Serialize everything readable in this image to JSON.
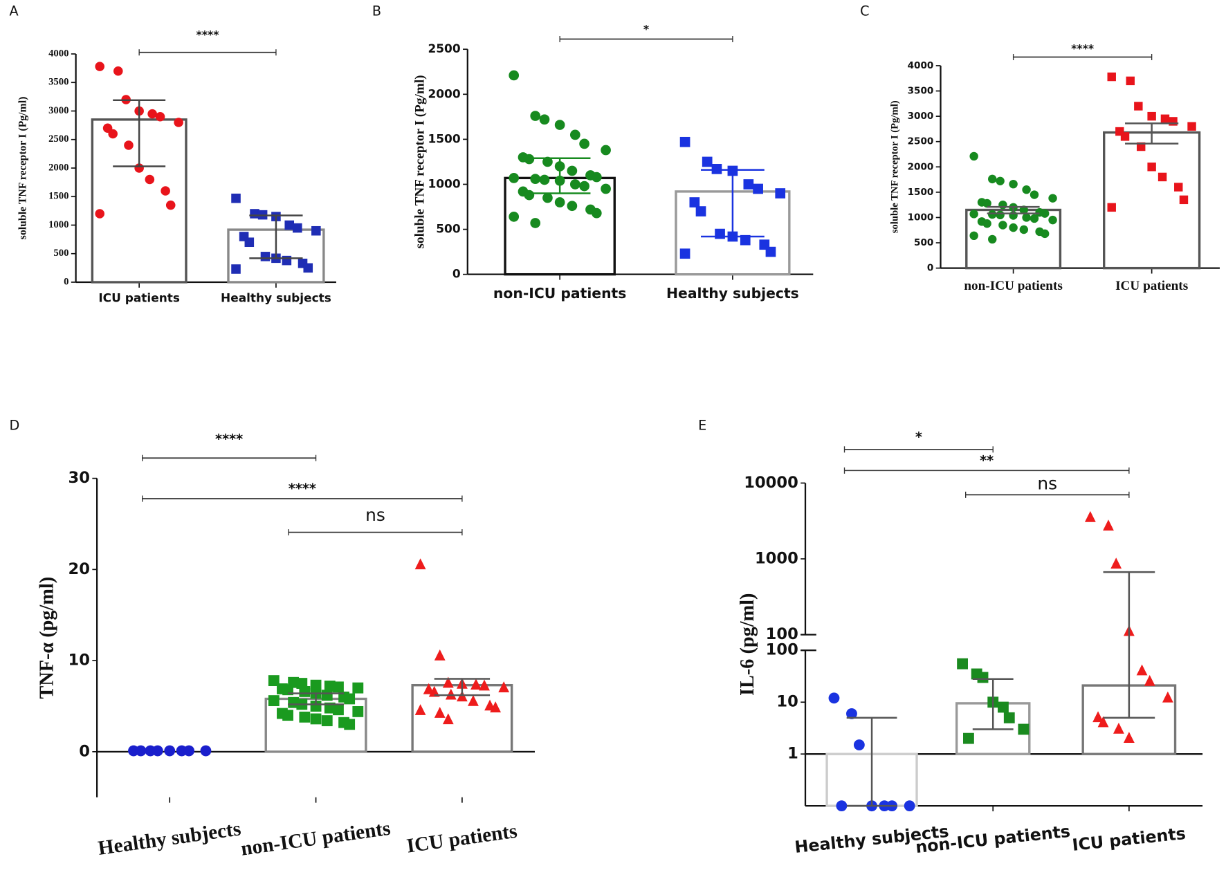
{
  "chart_data": [
    {
      "type": "dotbar",
      "panel": "A",
      "ylabel": "soluble TNF receptor I (Pg/ml)",
      "ylim": [
        0,
        4000
      ],
      "yticks": [
        0,
        500,
        1000,
        1500,
        2000,
        2500,
        3000,
        3500,
        4000
      ],
      "categories": [
        "ICU patients",
        "Healthy subjects"
      ],
      "groups": [
        {
          "color": "#e8141b",
          "marker": "circle",
          "bar_color": "#555555",
          "whisker_color": "#444444",
          "bar": 2850,
          "whisker_low": 2030,
          "whisker_high": 3190,
          "points": [
            3780,
            3700,
            3200,
            3000,
            2950,
            2900,
            2800,
            2700,
            2600,
            2400,
            2000,
            1800,
            1600,
            1350,
            1200
          ]
        },
        {
          "color": "#1f2db4",
          "marker": "square",
          "bar_color": "#888888",
          "whisker_color": "#444444",
          "bar": 920,
          "whisker_low": 420,
          "whisker_high": 1170,
          "points": [
            1470,
            1200,
            1180,
            1150,
            1000,
            950,
            900,
            800,
            700,
            450,
            420,
            380,
            330,
            250,
            230
          ]
        }
      ],
      "brackets": [
        {
          "from": 0,
          "to": 1,
          "label": "****"
        }
      ]
    },
    {
      "type": "dotbar",
      "panel": "B",
      "ylabel": "soluble TNF receptor I (Pg/ml)",
      "ylim": [
        0,
        2500
      ],
      "yticks": [
        0,
        500,
        1000,
        1500,
        2000,
        2500
      ],
      "categories": [
        "non-ICU patients",
        "Healthy subjects"
      ],
      "groups": [
        {
          "color": "#178a1f",
          "marker": "circle",
          "bar_color": "#111111",
          "whisker_color": "#178a1f",
          "bar": 1070,
          "whisker_low": 900,
          "whisker_high": 1290,
          "points": [
            2210,
            1760,
            1720,
            1660,
            1550,
            1450,
            1380,
            1300,
            1280,
            1250,
            1200,
            1150,
            1100,
            1080,
            1070,
            1060,
            1050,
            1040,
            1000,
            980,
            950,
            920,
            880,
            850,
            800,
            760,
            720,
            680,
            640,
            570
          ]
        },
        {
          "color": "#1a33e0",
          "marker": "square",
          "bar_color": "#999999",
          "whisker_color": "#1a33e0",
          "bar": 920,
          "whisker_low": 420,
          "whisker_high": 1160,
          "points": [
            1470,
            1250,
            1170,
            1150,
            1000,
            950,
            900,
            800,
            700,
            450,
            420,
            380,
            330,
            250,
            230
          ]
        }
      ],
      "brackets": [
        {
          "from": 0,
          "to": 1,
          "label": "*"
        }
      ]
    },
    {
      "type": "dotbar",
      "panel": "C",
      "ylabel": "soluble TNF receptor I (Pg/ml)",
      "ylim": [
        0,
        4000
      ],
      "yticks": [
        0,
        500,
        1000,
        1500,
        2000,
        2500,
        3000,
        3500,
        4000
      ],
      "categories": [
        "non-ICU patients",
        "ICU patients"
      ],
      "groups": [
        {
          "color": "#178a1f",
          "marker": "circle",
          "bar_color": "#555555",
          "whisker_color": "#555555",
          "bar": 1150,
          "whisker_low": 1080,
          "whisker_high": 1210,
          "points": [
            2210,
            1760,
            1720,
            1660,
            1550,
            1450,
            1380,
            1300,
            1280,
            1250,
            1200,
            1150,
            1100,
            1080,
            1070,
            1060,
            1050,
            1040,
            1000,
            980,
            950,
            920,
            880,
            850,
            800,
            760,
            720,
            680,
            640,
            570
          ]
        },
        {
          "color": "#e8141b",
          "marker": "square",
          "bar_color": "#555555",
          "whisker_color": "#555555",
          "bar": 2680,
          "whisker_low": 2460,
          "whisker_high": 2860,
          "points": [
            3780,
            3700,
            3200,
            3000,
            2950,
            2900,
            2800,
            2700,
            2600,
            2400,
            2000,
            1800,
            1600,
            1350,
            1200
          ]
        }
      ],
      "brackets": [
        {
          "from": 0,
          "to": 1,
          "label": "****"
        }
      ]
    },
    {
      "type": "dotbar",
      "panel": "D",
      "ylabel": "TNF-α  (pg/ml)",
      "ylim": [
        -5,
        30
      ],
      "yticks": [
        0,
        10,
        20,
        30
      ],
      "categories": [
        "Healthy subjects",
        "non-ICU patients",
        "ICU patients"
      ],
      "groups": [
        {
          "color": "#1a1fcc",
          "marker": "circle",
          "points": [
            0.1,
            0.1,
            0.1,
            0.1,
            0.1,
            0.1,
            0.1,
            0.1
          ]
        },
        {
          "color": "#1a9a1f",
          "marker": "square",
          "bar_color": "#888888",
          "whisker_color": "#555555",
          "bar": 5.8,
          "whisker_low": 5.2,
          "whisker_high": 6.4,
          "points": [
            7.8,
            7.6,
            7.5,
            7.3,
            7.2,
            7.1,
            7.0,
            6.9,
            6.8,
            6.6,
            6.4,
            6.2,
            6.0,
            5.8,
            5.6,
            5.4,
            5.2,
            5.0,
            4.8,
            4.6,
            4.4,
            4.2,
            4.0,
            3.8,
            3.6,
            3.4,
            3.2,
            3.0
          ]
        },
        {
          "color": "#ee1c1c",
          "marker": "triangle",
          "bar_color": "#777777",
          "whisker_color": "#555555",
          "bar": 7.3,
          "whisker_low": 6.2,
          "whisker_high": 8.0,
          "points": [
            20.5,
            10.5,
            7.5,
            7.4,
            7.3,
            7.2,
            7.0,
            6.8,
            6.5,
            6.2,
            6.0,
            5.5,
            5.0,
            4.8,
            4.5,
            4.2,
            3.5
          ]
        }
      ],
      "brackets": [
        {
          "from": 0,
          "to": 1,
          "label": "****"
        },
        {
          "from": 0,
          "to": 2,
          "label": "****"
        },
        {
          "from": 1,
          "to": 2,
          "label": "ns"
        }
      ]
    },
    {
      "type": "dotbar",
      "panel": "E",
      "ylabel": "IL-6  (pg/ml)",
      "log": true,
      "ybreak": 100,
      "ylim": [
        0.1,
        10000
      ],
      "yticks": [
        1,
        10,
        100,
        1000,
        10000
      ],
      "categories": [
        "Healthy subjects",
        "non-ICU patients",
        "ICU patients"
      ],
      "groups": [
        {
          "color": "#1a33e0",
          "marker": "circle",
          "bar_color": "#cccccc",
          "whisker_color": "#555555",
          "bar": 0.1,
          "whisker_low": 0.1,
          "whisker_high": 5,
          "points": [
            12,
            6,
            1.5,
            0.1,
            0.1,
            0.1,
            0.1,
            0.1
          ]
        },
        {
          "color": "#1a8a1f",
          "marker": "square",
          "bar_color": "#999999",
          "whisker_color": "#555555",
          "bar": 9.5,
          "whisker_low": 3,
          "whisker_high": 28,
          "points": [
            55,
            35,
            30,
            10,
            8,
            5,
            3,
            2
          ]
        },
        {
          "color": "#ee1c1c",
          "marker": "triangle",
          "bar_color": "#777777",
          "whisker_color": "#555555",
          "bar": 21,
          "whisker_low": 5,
          "whisker_high": 670,
          "points": [
            3500,
            2700,
            850,
            110,
            40,
            25,
            12,
            5,
            4,
            3,
            2
          ]
        }
      ],
      "brackets": [
        {
          "from": 0,
          "to": 1,
          "label": "*"
        },
        {
          "from": 0,
          "to": 2,
          "label": "**"
        },
        {
          "from": 1,
          "to": 2,
          "label": "ns"
        }
      ]
    }
  ]
}
